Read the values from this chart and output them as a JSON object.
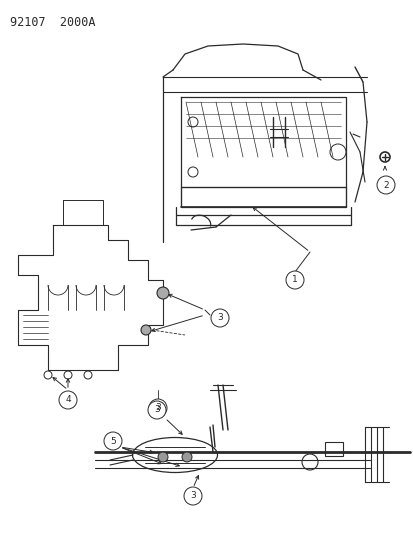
{
  "title": "92107  2000A",
  "background_color": "#ffffff",
  "line_color": "#2a2a2a",
  "gray_color": "#888888",
  "light_gray": "#cccccc",
  "figsize": [
    4.14,
    5.33
  ],
  "dpi": 100
}
